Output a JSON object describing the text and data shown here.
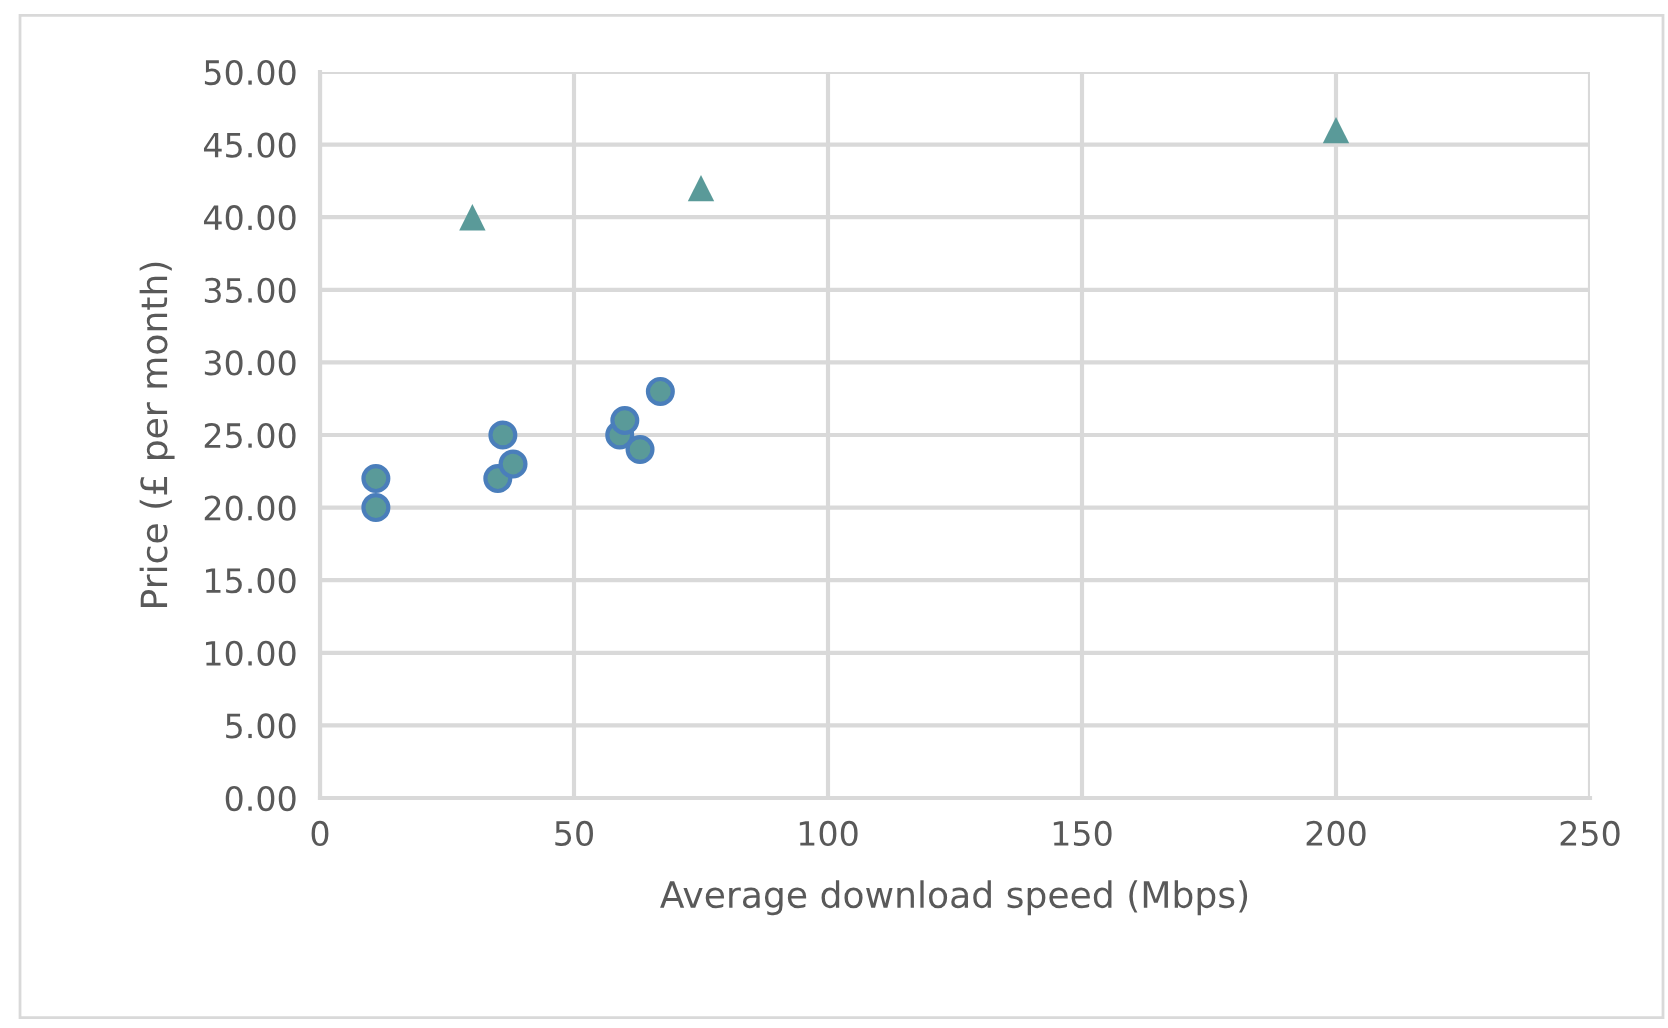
{
  "chart_data": {
    "type": "scatter",
    "xlabel": "Average download speed (Mbps)",
    "ylabel": "Price (£ per month)",
    "xlim": [
      0,
      250
    ],
    "xticks": [
      0,
      50,
      100,
      150,
      200,
      250
    ],
    "ylim": [
      0,
      50
    ],
    "yticks": [
      {
        "value": 0,
        "label": "0.00"
      },
      {
        "value": 5,
        "label": "5.00"
      },
      {
        "value": 10,
        "label": "10.00"
      },
      {
        "value": 15,
        "label": "15.00"
      },
      {
        "value": 20,
        "label": "20.00"
      },
      {
        "value": 25,
        "label": "25.00"
      },
      {
        "value": 30,
        "label": "30.00"
      },
      {
        "value": 35,
        "label": "35.00"
      },
      {
        "value": 40,
        "label": "40.00"
      },
      {
        "value": 45,
        "label": "45.00"
      },
      {
        "value": 50,
        "label": "50.00"
      }
    ],
    "grid": true,
    "series": [
      {
        "x": [
          11,
          11,
          35,
          36,
          38,
          59,
          60,
          63,
          67
        ],
        "values": [
          22,
          20,
          22,
          25,
          23,
          25,
          26,
          24,
          28
        ],
        "color": "#5a9a99",
        "marker": "circle"
      },
      {
        "x": [
          30,
          75,
          200
        ],
        "values": [
          40,
          42,
          46
        ],
        "color": "#5a9a99",
        "marker": "triangle"
      }
    ]
  }
}
